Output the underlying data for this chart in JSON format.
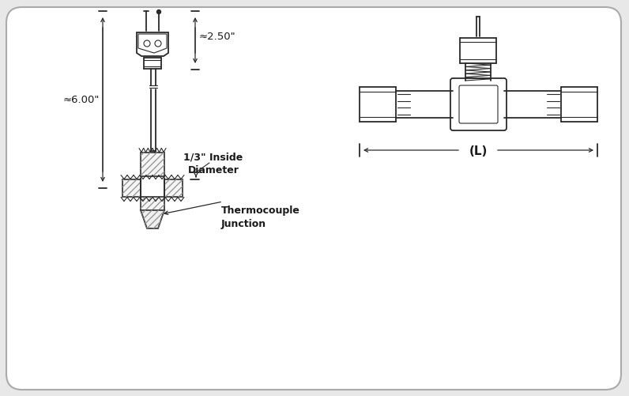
{
  "bg_color": "#e8e8e8",
  "box_color": "#ffffff",
  "line_color": "#2a2a2a",
  "text_color": "#1a1a1a",
  "label_6in": "≈6.00\"",
  "label_25in": "≈2.50\"",
  "label_diameter": "1/3\" Inside\nDiameter",
  "label_junction": "Thermocouple\nJunction",
  "label_L": "(L)"
}
